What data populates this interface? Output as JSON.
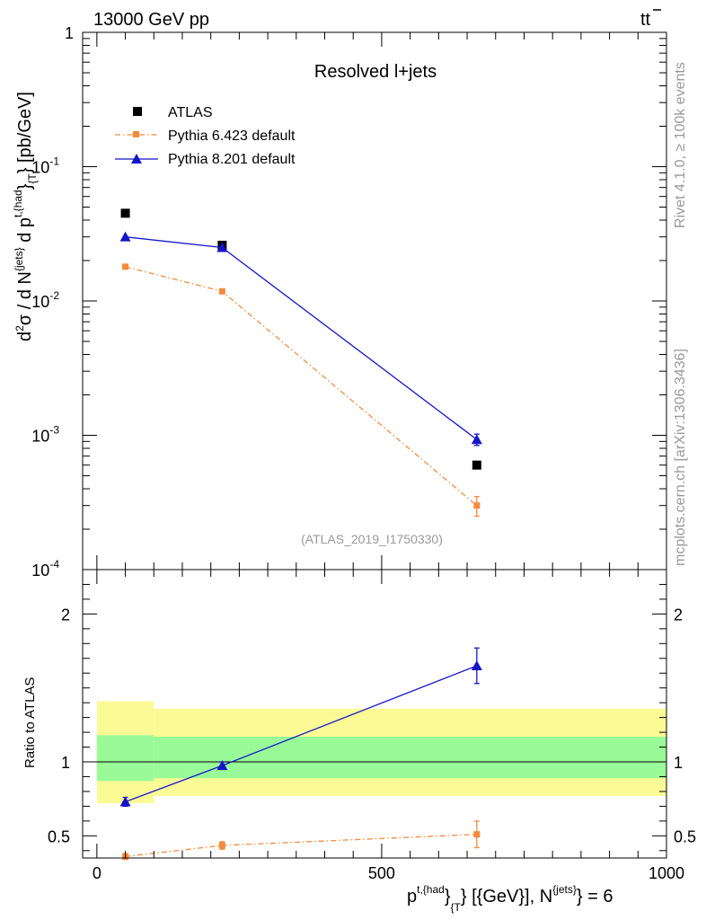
{
  "header": {
    "left": "13000 GeV pp",
    "right_top": "tt",
    "right_bar": "̄"
  },
  "side_labels": {
    "rivet": "Rivet 4.1.0, ≥ 100k events",
    "mcplots": "mcplots.cern.ch [arXiv:1306.3436]"
  },
  "colors": {
    "atlas": "#000000",
    "pythia6": "#f58a3c",
    "pythia8": "#1515c8",
    "band_outer": "#fbfb96",
    "band_inner": "#98fb98"
  },
  "chart_data": [
    {
      "type": "scatter",
      "title": "Resolved l+jets",
      "analysis_tag": "(ATLAS_2019_I1750330)",
      "yscale": "log",
      "ylim": [
        0.0001,
        1
      ],
      "xlim": [
        -25,
        1000
      ],
      "ylabel": "d²σ / d N{jets} d p{t,{had}}{T} [pb/GeV]",
      "ytick_labels": [
        "1",
        "10⁻¹",
        "10⁻²",
        "10⁻³",
        "10⁻⁴"
      ],
      "legend_position": "top-left",
      "legend": [
        "ATLAS",
        "Pythia 6.423 default",
        "Pythia 8.201 default"
      ],
      "series": [
        {
          "name": "ATLAS",
          "marker": "square",
          "x": [
            50,
            220,
            667
          ],
          "y": [
            0.045,
            0.026,
            0.0006
          ]
        },
        {
          "name": "Pythia 6.423 default",
          "marker": "small-square",
          "line": "dash-dot",
          "x": [
            50,
            220,
            667
          ],
          "y": [
            0.018,
            0.0118,
            0.0003
          ],
          "yerr_low": [
            0,
            0,
            5e-05
          ],
          "yerr_high": [
            0,
            0,
            5e-05
          ]
        },
        {
          "name": "Pythia 8.201 default",
          "marker": "triangle",
          "line": "solid",
          "x": [
            50,
            220,
            667
          ],
          "y": [
            0.03,
            0.025,
            0.00093
          ],
          "yerr_low": [
            0,
            0,
            9e-05
          ],
          "yerr_high": [
            0,
            0,
            9e-05
          ]
        }
      ]
    },
    {
      "type": "scatter",
      "ylabel": "Ratio to ATLAS",
      "xlabel": "p{t,{had}}{T} [{GeV}], N{jets} = 6",
      "ylim": [
        0.35,
        2.3
      ],
      "xlim": [
        -25,
        1000
      ],
      "xticks": [
        0,
        500,
        1000
      ],
      "yticks": [
        0.5,
        1,
        2
      ],
      "ytick_labels": [
        "0.5",
        "1",
        "2"
      ],
      "xtick_labels": [
        "0",
        "500",
        "1000"
      ],
      "reference_line": 1,
      "bands": [
        {
          "x0": 0,
          "x1": 100,
          "outer": [
            0.72,
            1.41
          ],
          "inner": [
            0.87,
            1.18
          ]
        },
        {
          "x0": 100,
          "x1": 1000,
          "outer": [
            0.77,
            1.36
          ],
          "inner": [
            0.89,
            1.17
          ]
        }
      ],
      "series": [
        {
          "name": "Pythia 6.423 default",
          "x": [
            50,
            220,
            667
          ],
          "y": [
            0.36,
            0.435,
            0.51
          ],
          "yerr_low": [
            0.02,
            0.025,
            0.09
          ],
          "yerr_high": [
            0.02,
            0.025,
            0.09
          ]
        },
        {
          "name": "Pythia 8.201 default",
          "x": [
            50,
            220,
            667
          ],
          "y": [
            0.73,
            0.975,
            1.65
          ],
          "yerr_low": [
            0.03,
            0.025,
            0.12
          ],
          "yerr_high": [
            0.03,
            0.025,
            0.12
          ]
        }
      ]
    }
  ]
}
